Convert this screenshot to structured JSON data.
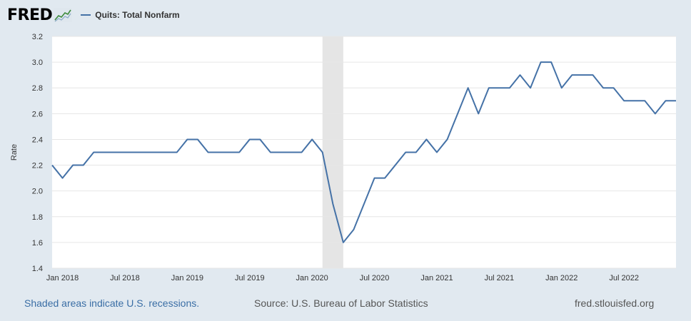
{
  "header": {
    "logo": "FRED",
    "legend_label": "Quits: Total Nonfarm"
  },
  "footer": {
    "note": "Shaded areas indicate U.S. recessions.",
    "source": "Source: U.S. Bureau of Labor Statistics",
    "url": "fred.stlouisfed.org"
  },
  "colors": {
    "line": "#4572a7",
    "plot_background": "#ffffff",
    "page_background": "#e1e9f0",
    "recession": "#e5e5e5",
    "grid": "#e6e6e6"
  },
  "chart_data": {
    "type": "line",
    "ylabel": "Rate",
    "ylim": [
      1.4,
      3.2
    ],
    "yticks": [
      "1.4",
      "1.6",
      "1.8",
      "2.0",
      "2.2",
      "2.4",
      "2.6",
      "2.8",
      "3.0",
      "3.2"
    ],
    "xticks": [
      "Jan 2018",
      "Jul 2018",
      "Jan 2019",
      "Jul 2019",
      "Jan 2020",
      "Jul 2020",
      "Jan 2021",
      "Jul 2021",
      "Jan 2022",
      "Jul 2022"
    ],
    "grid": true,
    "legend": "top-left",
    "recessions": [
      {
        "start": "2020-02",
        "end": "2020-04"
      }
    ],
    "series": [
      {
        "name": "Quits: Total Nonfarm",
        "x": [
          "2017-12",
          "2018-01",
          "2018-02",
          "2018-03",
          "2018-04",
          "2018-05",
          "2018-06",
          "2018-07",
          "2018-08",
          "2018-09",
          "2018-10",
          "2018-11",
          "2018-12",
          "2019-01",
          "2019-02",
          "2019-03",
          "2019-04",
          "2019-05",
          "2019-06",
          "2019-07",
          "2019-08",
          "2019-09",
          "2019-10",
          "2019-11",
          "2019-12",
          "2020-01",
          "2020-02",
          "2020-03",
          "2020-04",
          "2020-05",
          "2020-06",
          "2020-07",
          "2020-08",
          "2020-09",
          "2020-10",
          "2020-11",
          "2020-12",
          "2021-01",
          "2021-02",
          "2021-03",
          "2021-04",
          "2021-05",
          "2021-06",
          "2021-07",
          "2021-08",
          "2021-09",
          "2021-10",
          "2021-11",
          "2021-12",
          "2022-01",
          "2022-02",
          "2022-03",
          "2022-04",
          "2022-05",
          "2022-06",
          "2022-07",
          "2022-08",
          "2022-09",
          "2022-10",
          "2022-11",
          "2022-12"
        ],
        "values": [
          2.2,
          2.1,
          2.2,
          2.2,
          2.3,
          2.3,
          2.3,
          2.3,
          2.3,
          2.3,
          2.3,
          2.3,
          2.3,
          2.4,
          2.4,
          2.3,
          2.3,
          2.3,
          2.3,
          2.4,
          2.4,
          2.3,
          2.3,
          2.3,
          2.3,
          2.4,
          2.3,
          1.9,
          1.6,
          1.7,
          1.9,
          2.1,
          2.1,
          2.2,
          2.3,
          2.3,
          2.4,
          2.3,
          2.4,
          2.6,
          2.8,
          2.6,
          2.8,
          2.8,
          2.8,
          2.9,
          2.8,
          3.0,
          3.0,
          2.8,
          2.9,
          2.9,
          2.9,
          2.8,
          2.8,
          2.7,
          2.7,
          2.7,
          2.6,
          2.7,
          2.7
        ]
      }
    ]
  }
}
